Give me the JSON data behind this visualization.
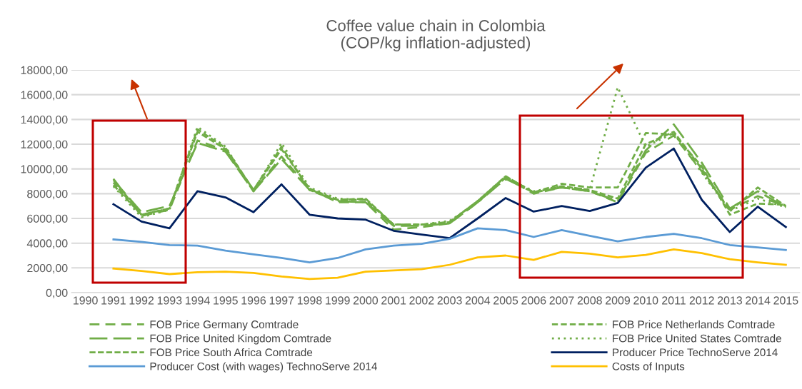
{
  "chart_data": {
    "type": "line",
    "title": "Coffee value chain in Colombia\n(COP/kg inflation-adjusted)",
    "categories": [
      "1990",
      "1991",
      "1992",
      "1993",
      "1994",
      "1995",
      "1996",
      "1997",
      "1998",
      "1999",
      "2000",
      "2001",
      "2002",
      "2003",
      "2004",
      "2005",
      "2006",
      "2007",
      "2008",
      "2009",
      "2010",
      "2011",
      "2012",
      "2013",
      "2014",
      "2015"
    ],
    "ylim": [
      0,
      18000
    ],
    "yticks": [
      {
        "value": 0,
        "label": "0,00"
      },
      {
        "value": 2000,
        "label": "2000,00"
      },
      {
        "value": 4000,
        "label": "4000,00"
      },
      {
        "value": 6000,
        "label": "6000,00"
      },
      {
        "value": 8000,
        "label": "8000,00"
      },
      {
        "value": 10000,
        "label": "10000,00"
      },
      {
        "value": 12000,
        "label": "12000,00"
      },
      {
        "value": 14000,
        "label": "14000,00"
      },
      {
        "value": 16000,
        "label": "16000,00"
      },
      {
        "value": 18000,
        "label": "18000,00"
      }
    ],
    "grid": "y",
    "legend": "bottom",
    "marker": "none",
    "series": [
      {
        "name": "FOB Price Germany Comtrade",
        "color": "#70ad47",
        "line_style": "dashed",
        "values": [
          null,
          9200,
          6200,
          6700,
          12300,
          11500,
          8200,
          11000,
          8400,
          7300,
          7300,
          5100,
          5300,
          5600,
          7300,
          9300,
          8000,
          8500,
          8200,
          7300,
          11300,
          12700,
          9800,
          6700,
          7800,
          7000
        ]
      },
      {
        "name": "FOB Price Netherlands Comtrade",
        "color": "#70ad47",
        "line_style": "dashed",
        "values": [
          null,
          8700,
          6300,
          6800,
          13200,
          11700,
          8300,
          11800,
          8300,
          7500,
          7500,
          5500,
          5500,
          5700,
          7400,
          9400,
          8100,
          8800,
          8500,
          8500,
          12900,
          12800,
          10200,
          6300,
          7200,
          7100
        ]
      },
      {
        "name": "FOB Price United Kingdom Comtrade",
        "color": "#70ad47",
        "line_style": "dashed",
        "values": [
          null,
          9100,
          6500,
          7000,
          12100,
          11400,
          8200,
          10800,
          8300,
          7400,
          7300,
          5400,
          5400,
          5600,
          7300,
          9200,
          8100,
          8500,
          8200,
          7400,
          11500,
          13600,
          10500,
          6800,
          8200,
          6900
        ]
      },
      {
        "name": "FOB Price United States Comtrade",
        "color": "#70ad47",
        "line_style": "dotted",
        "values": [
          null,
          8600,
          6100,
          6700,
          13400,
          11800,
          8200,
          12100,
          8500,
          7600,
          7500,
          5500,
          5500,
          5800,
          7300,
          9300,
          8200,
          8600,
          8300,
          16600,
          11800,
          12900,
          9700,
          6600,
          7600,
          6900
        ]
      },
      {
        "name": "FOB Price South Africa Comtrade",
        "color": "#70ad47",
        "line_style": "dashed",
        "values": [
          null,
          8900,
          6300,
          6800,
          13000,
          11600,
          8300,
          11600,
          8400,
          7500,
          7600,
          5500,
          5500,
          5700,
          7400,
          9400,
          8100,
          8600,
          8300,
          7600,
          12000,
          13000,
          10000,
          6600,
          8500,
          7000
        ]
      },
      {
        "name": "Producer Price TechnoServe 2014",
        "color": "#002060",
        "line_style": "solid",
        "values": [
          null,
          7150,
          5750,
          5200,
          8200,
          7700,
          6500,
          8750,
          6300,
          6000,
          5900,
          5000,
          4700,
          4400,
          6000,
          7650,
          6550,
          7000,
          6600,
          7250,
          10100,
          11650,
          7500,
          4900,
          6950,
          5300
        ]
      },
      {
        "name": "Producer Cost (with wages) TechnoServe 2014",
        "color": "#5b9bd5",
        "line_style": "solid",
        "values": [
          null,
          4300,
          4100,
          3850,
          3800,
          3400,
          3100,
          2800,
          2450,
          2800,
          3500,
          3800,
          3950,
          4350,
          5200,
          5050,
          4500,
          5050,
          4600,
          4150,
          4500,
          4750,
          4400,
          3850,
          3650,
          3450
        ]
      },
      {
        "name": "Costs of Inputs",
        "color": "#ffc000",
        "line_style": "solid",
        "values": [
          null,
          1950,
          1750,
          1500,
          1650,
          1700,
          1600,
          1300,
          1100,
          1200,
          1700,
          1800,
          1900,
          2250,
          2850,
          3000,
          2650,
          3300,
          3150,
          2850,
          3050,
          3500,
          3200,
          2700,
          2450,
          2250
        ]
      }
    ]
  }
}
